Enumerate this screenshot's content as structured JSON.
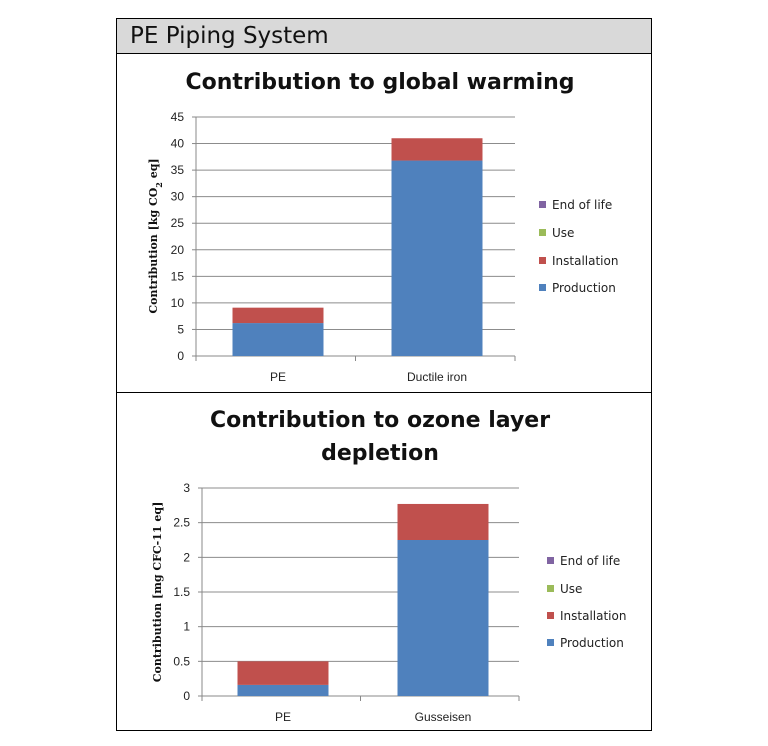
{
  "header": {
    "title": "PE Piping System"
  },
  "chart_data": [
    {
      "type": "bar",
      "stacked": true,
      "title": "Contribution to global warming",
      "ylabel": "Contribution [kg CO",
      "ylabel_sub": "2",
      "ylabel_suffix": " eq]",
      "ylim": [
        0,
        45
      ],
      "yticks": [
        0,
        5,
        10,
        15,
        20,
        25,
        30,
        35,
        40,
        45
      ],
      "categories": [
        "PE",
        "Ductile iron"
      ],
      "series": [
        {
          "name": "Production",
          "color": "#4f81bd",
          "values": [
            6.2,
            36.8
          ]
        },
        {
          "name": "Installation",
          "color": "#c0504d",
          "values": [
            2.9,
            4.2
          ]
        },
        {
          "name": "Use",
          "color": "#9bbb59",
          "values": [
            0,
            0
          ]
        },
        {
          "name": "End of life",
          "color": "#8064a2",
          "values": [
            0,
            0
          ]
        }
      ],
      "legend_position": "right",
      "grid": true
    },
    {
      "type": "bar",
      "stacked": true,
      "title": "Contribution to ozone layer depletion",
      "title_lines": [
        "Contribution to ozone layer",
        "depletion"
      ],
      "ylabel": "Contribution [mg CFC-11 eq]",
      "ylim": [
        0,
        3
      ],
      "yticks": [
        0,
        0.5,
        1,
        1.5,
        2,
        2.5,
        3
      ],
      "categories": [
        "PE",
        "Gusseisen"
      ],
      "series": [
        {
          "name": "Production",
          "color": "#4f81bd",
          "values": [
            0.16,
            2.25
          ]
        },
        {
          "name": "Installation",
          "color": "#c0504d",
          "values": [
            0.34,
            0.52
          ]
        },
        {
          "name": "Use",
          "color": "#9bbb59",
          "values": [
            0,
            0
          ]
        },
        {
          "name": "End of life",
          "color": "#8064a2",
          "values": [
            0,
            0
          ]
        }
      ],
      "legend_position": "right",
      "grid": true
    }
  ]
}
